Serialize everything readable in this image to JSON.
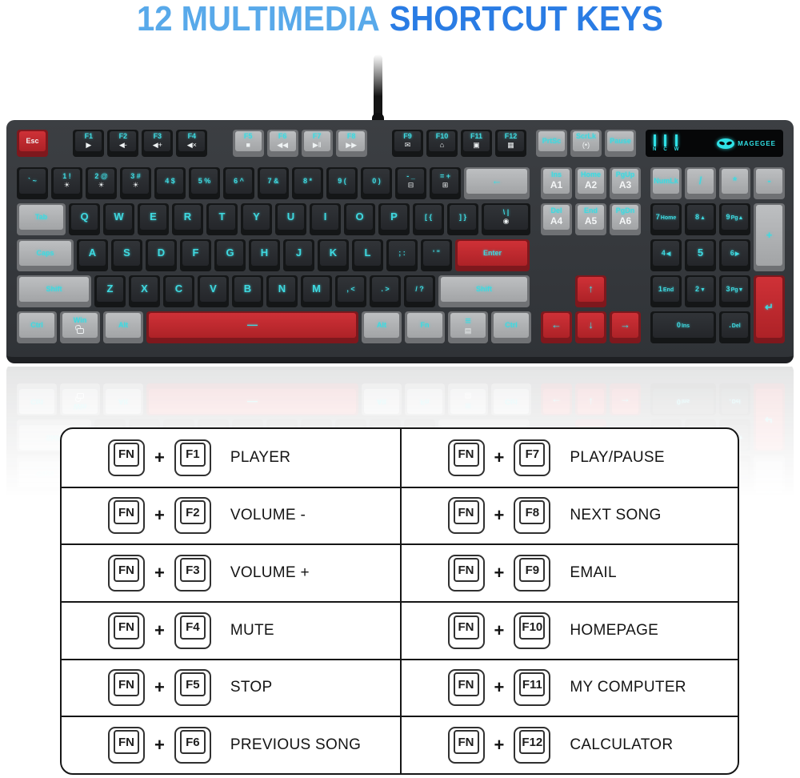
{
  "title": {
    "part1": "12 MULTIMEDIA",
    "part2": "SHORTCUT KEYS"
  },
  "colors": {
    "title_light": "#58a9ea",
    "title_dark": "#2a7ce4",
    "legend_cyan": "#3fd9e0",
    "key_black": "#26282b",
    "key_gray": "#a9abad",
    "key_red": "#c0272d",
    "case": "#36393d"
  },
  "keyboard": {
    "logo_text": "MAGEGEE",
    "indicators": [
      "N",
      "C",
      "W"
    ],
    "frow_groups": [
      [
        {
          "t": "Esc",
          "c": "r",
          "tc": "w"
        }
      ],
      [
        {
          "t": "F1",
          "b": "▶"
        },
        {
          "t": "F2",
          "b": "◀-"
        },
        {
          "t": "F3",
          "b": "◀+"
        },
        {
          "t": "F4",
          "b": "◀×"
        }
      ],
      [
        {
          "t": "F5",
          "c": "g",
          "b": "■"
        },
        {
          "t": "F6",
          "c": "g",
          "b": "◀◀"
        },
        {
          "t": "F7",
          "c": "g",
          "b": "▶‖"
        },
        {
          "t": "F8",
          "c": "g",
          "b": "▶▶"
        }
      ],
      [
        {
          "t": "F9",
          "b": "✉"
        },
        {
          "t": "F10",
          "b": "⌂"
        },
        {
          "t": "F11",
          "b": "▣"
        },
        {
          "t": "F12",
          "b": "▦"
        }
      ]
    ],
    "frow_nav": [
      {
        "t": "PrtSc",
        "c": "g"
      },
      {
        "t": "ScrLk",
        "c": "g",
        "b": "(•)"
      },
      {
        "t": "Pause",
        "c": "g"
      }
    ],
    "main_rows": [
      [
        {
          "t": "` ~"
        },
        {
          "t": "1 !",
          "b": "☀"
        },
        {
          "t": "2 @",
          "b": "☀"
        },
        {
          "t": "3 #",
          "b": "☀"
        },
        {
          "t": "4 $"
        },
        {
          "t": "5 %"
        },
        {
          "t": "6 ^"
        },
        {
          "t": "7 &"
        },
        {
          "t": "8 *"
        },
        {
          "t": "9 ("
        },
        {
          "t": "0 )"
        },
        {
          "t": "- _",
          "b": "⊟"
        },
        {
          "t": "= +",
          "b": "⊞"
        },
        {
          "t": "←",
          "c": "g",
          "w": 2
        }
      ],
      [
        {
          "t": "Tab",
          "c": "g",
          "w": 1.5
        },
        "Q",
        "W",
        "E",
        "R",
        "T",
        "Y",
        "U",
        "I",
        "O",
        "P",
        {
          "t": "[ {"
        },
        {
          "t": "] }"
        },
        {
          "t": "\\ |",
          "b": "◉",
          "w": 1.5
        }
      ],
      [
        {
          "t": "Caps",
          "c": "g",
          "w": 1.75
        },
        "A",
        "S",
        "D",
        "F",
        "G",
        "H",
        "J",
        "K",
        "L",
        {
          "t": "; :"
        },
        {
          "t": "' \""
        },
        {
          "t": "Enter",
          "c": "r",
          "w": 2.25
        }
      ],
      [
        {
          "t": "Shift",
          "c": "g",
          "w": 2.25
        },
        "Z",
        "X",
        "C",
        "V",
        "B",
        "N",
        "M",
        {
          "t": ", <"
        },
        {
          "t": ". >"
        },
        {
          "t": "/ ?"
        },
        {
          "t": "Shift",
          "c": "g",
          "w": 2.75
        }
      ],
      [
        {
          "t": "Ctrl",
          "c": "g",
          "w": 1.25
        },
        {
          "t": "Win",
          "c": "g",
          "w": 1.25,
          "b": "@lock"
        },
        {
          "t": "Alt",
          "c": "g",
          "w": 1.25
        },
        {
          "t": "—",
          "c": "r",
          "w": 6.25
        },
        {
          "t": "Alt",
          "c": "g",
          "w": 1.25
        },
        {
          "t": "Fn",
          "c": "g",
          "w": 1.25
        },
        {
          "t": "≡",
          "c": "g",
          "w": 1.25,
          "b": "▤"
        },
        {
          "t": "Ctrl",
          "c": "g",
          "w": 1.25
        }
      ]
    ],
    "nav_grid": [
      [
        {
          "t": "Ins",
          "f": "A1",
          "c": "g"
        },
        {
          "t": "Home",
          "f": "A2",
          "c": "g"
        },
        {
          "t": "PgUp",
          "f": "A3",
          "c": "g"
        }
      ],
      [
        {
          "t": "Del",
          "f": "A4",
          "c": "g"
        },
        {
          "t": "End",
          "f": "A5",
          "c": "g"
        },
        {
          "t": "PgDn",
          "f": "A6",
          "c": "g"
        }
      ],
      [
        null,
        null,
        null
      ],
      [
        null,
        {
          "t": "↑",
          "c": "r"
        },
        null
      ],
      [
        {
          "t": "←",
          "c": "r"
        },
        {
          "t": "↓",
          "c": "r"
        },
        {
          "t": "→",
          "c": "r"
        }
      ]
    ],
    "numpad": [
      {
        "t": "NumLk",
        "c": "g"
      },
      {
        "t": "/",
        "c": "g"
      },
      {
        "t": "*",
        "c": "g"
      },
      {
        "t": "-",
        "c": "g"
      },
      {
        "t": "7",
        "s": "Home"
      },
      {
        "t": "8",
        "s": "▲"
      },
      {
        "t": "9",
        "s": "Pg▲"
      },
      {
        "t": "+",
        "c": "g",
        "rs": 2
      },
      {
        "t": "4",
        "s": "◀"
      },
      {
        "t": "5"
      },
      {
        "t": "6",
        "s": "▶"
      },
      {
        "t": "1",
        "s": "End"
      },
      {
        "t": "2",
        "s": "▼"
      },
      {
        "t": "3",
        "s": "Pg▼"
      },
      {
        "t": "↵",
        "c": "r",
        "rs": 2
      },
      {
        "t": "0",
        "s": "Ins",
        "cs": 2
      },
      {
        "t": ".",
        "s": "Del"
      }
    ]
  },
  "shortcuts": {
    "fn_label": "FN",
    "plus": "+",
    "left": [
      {
        "key": "F1",
        "label": "PLAYER"
      },
      {
        "key": "F2",
        "label": "VOLUME -"
      },
      {
        "key": "F3",
        "label": "VOLUME +"
      },
      {
        "key": "F4",
        "label": "MUTE"
      },
      {
        "key": "F5",
        "label": "STOP"
      },
      {
        "key": "F6",
        "label": "PREVIOUS SONG"
      }
    ],
    "right": [
      {
        "key": "F7",
        "label": "PLAY/PAUSE"
      },
      {
        "key": "F8",
        "label": "NEXT SONG"
      },
      {
        "key": "F9",
        "label": "EMAIL"
      },
      {
        "key": "F10",
        "label": "HOMEPAGE"
      },
      {
        "key": "F11",
        "label": "MY COMPUTER"
      },
      {
        "key": "F12",
        "label": "CALCULATOR"
      }
    ]
  }
}
